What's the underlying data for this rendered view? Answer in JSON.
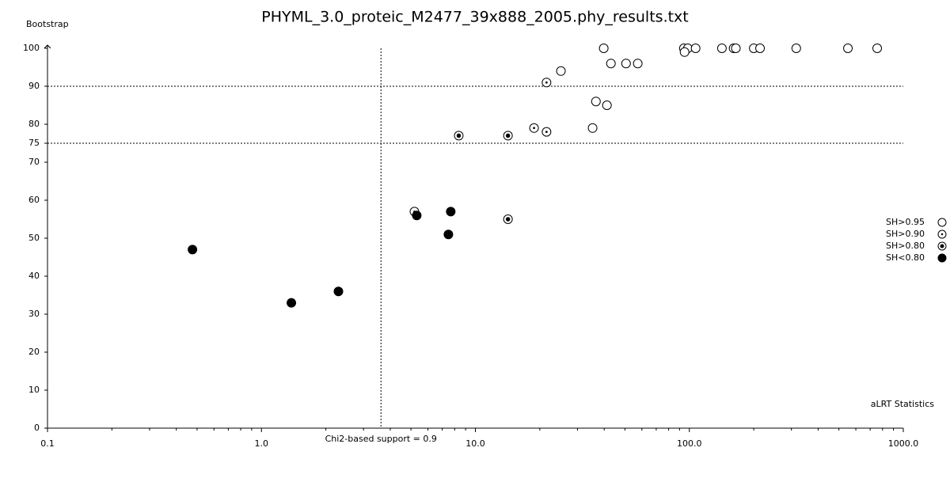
{
  "chart_data": {
    "type": "scatter",
    "title": "PHYML_3.0_proteic_M2477_39x888_2005.phy_results.txt",
    "y_label": "Bootstrap",
    "x_label": "aLRT Statistics",
    "x_scale": "log",
    "xlim": [
      0.1,
      1000
    ],
    "xticks": [
      {
        "value": 0.1,
        "label": "0.1"
      },
      {
        "value": 1,
        "label": "1.0"
      },
      {
        "value": 10,
        "label": "10.0"
      },
      {
        "value": 100,
        "label": "100.0"
      },
      {
        "value": 1000,
        "label": "1000.0"
      }
    ],
    "ylim": [
      0,
      100
    ],
    "yticks": [
      0,
      10,
      20,
      30,
      40,
      50,
      60,
      70,
      75,
      80,
      90,
      100
    ],
    "reference_lines": {
      "y": [
        75,
        90
      ],
      "x": {
        "value": 3.62,
        "label": "Chi2-based support = 0.9"
      }
    },
    "legend_position": "right",
    "series": [
      {
        "name": "SH>0.95",
        "color": "#000000",
        "marker": "open",
        "x": [
          25.1,
          36.6,
          41.2,
          35.3,
          43.0,
          50.6,
          57.4,
          39.8,
          94.3,
          98.4,
          95,
          107,
          142,
          161,
          165,
          200,
          214,
          316,
          551,
          755
        ],
        "values": [
          94,
          86,
          85,
          79,
          96,
          96,
          96,
          100,
          100,
          100,
          99,
          100,
          100,
          100,
          100,
          100,
          100,
          100,
          100,
          100
        ]
      },
      {
        "name": "SH>0.90",
        "color": "#000000",
        "marker": "dot",
        "x": [
          5.19,
          18.8,
          21.5,
          21.5
        ],
        "values": [
          57,
          79,
          91,
          78
        ]
      },
      {
        "name": "SH>0.80",
        "color": "#000000",
        "marker": "dot-large",
        "x": [
          8.36,
          14.2,
          14.2
        ],
        "values": [
          77,
          77,
          55
        ]
      },
      {
        "name": "SH<0.80",
        "color": "#000000",
        "marker": "filled",
        "x": [
          0.476,
          1.38,
          2.29,
          5.32,
          7.67,
          7.48
        ],
        "values": [
          47,
          33,
          36,
          56,
          57,
          51
        ]
      }
    ]
  }
}
